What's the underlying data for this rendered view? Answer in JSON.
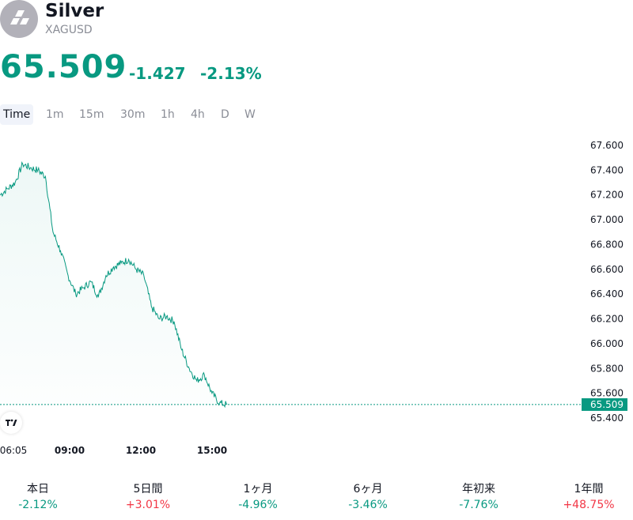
{
  "header": {
    "title": "Silver",
    "symbol": "XAGUSD"
  },
  "quote": {
    "price": "65.509",
    "change": "-1.427",
    "change_pct": "-2.13%"
  },
  "tabs": [
    {
      "label": "Time",
      "active": true
    },
    {
      "label": "1m"
    },
    {
      "label": "15m"
    },
    {
      "label": "30m"
    },
    {
      "label": "1h"
    },
    {
      "label": "4h"
    },
    {
      "label": "D"
    },
    {
      "label": "W"
    }
  ],
  "colors": {
    "up": "#f23645",
    "down": "#089981",
    "line": "#089981"
  },
  "icons": {
    "logo": "silver-bars-icon",
    "watermark": "tradingview-logo-icon"
  },
  "chart_data": {
    "type": "area",
    "ylim": [
      65.3,
      67.7
    ],
    "y_ticks": [
      "67.600",
      "67.400",
      "67.200",
      "67.000",
      "66.800",
      "66.600",
      "66.400",
      "66.200",
      "66.000",
      "65.800",
      "65.600",
      "65.400"
    ],
    "x_ticks": [
      "06:05",
      "09:00",
      "12:00",
      "15:00"
    ],
    "last_price_label": "65.509",
    "x": [
      "06:05",
      "06:40",
      "07:15",
      "07:40",
      "08:00",
      "08:15",
      "08:35",
      "08:50",
      "09:05",
      "09:25",
      "09:50",
      "10:05",
      "10:25",
      "10:50",
      "11:10",
      "11:35",
      "12:00",
      "12:20",
      "12:40",
      "13:00",
      "13:20",
      "13:40",
      "14:00",
      "14:15",
      "14:35",
      "14:50",
      "15:00",
      "15:10",
      "15:20",
      "15:25",
      "15:30"
    ],
    "values": [
      67.2,
      67.25,
      67.3,
      67.45,
      67.42,
      67.4,
      67.35,
      66.9,
      66.75,
      66.55,
      66.4,
      66.45,
      66.5,
      66.38,
      66.55,
      66.62,
      66.65,
      66.68,
      66.6,
      66.55,
      66.3,
      66.2,
      66.22,
      66.18,
      65.95,
      65.8,
      65.7,
      65.75,
      65.6,
      65.52,
      65.509
    ]
  },
  "performance": [
    {
      "label": "本日",
      "value": "-2.12%",
      "dir": "neg"
    },
    {
      "label": "5日間",
      "value": "+3.01%",
      "dir": "pos"
    },
    {
      "label": "1ヶ月",
      "value": "-4.96%",
      "dir": "neg"
    },
    {
      "label": "6ヶ月",
      "value": "-3.46%",
      "dir": "neg"
    },
    {
      "label": "年初来",
      "value": "-7.76%",
      "dir": "neg"
    },
    {
      "label": "1年間",
      "value": "+48.75%",
      "dir": "pos"
    }
  ]
}
